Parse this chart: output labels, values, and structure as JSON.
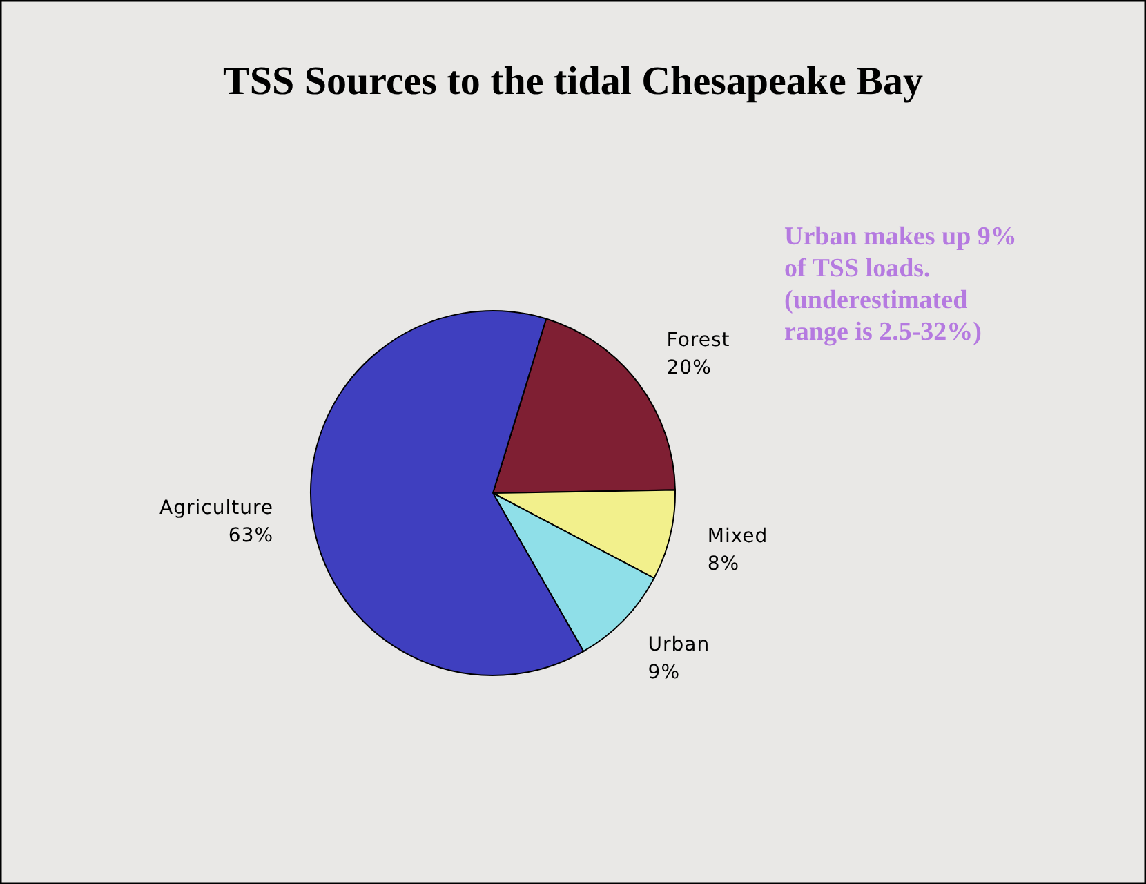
{
  "chart_data": {
    "type": "pie",
    "title": "TSS Sources to the tidal Chesapeake Bay",
    "categories": [
      "Forest",
      "Mixed",
      "Urban",
      "Agriculture"
    ],
    "values": [
      20,
      8,
      9,
      63
    ],
    "colors": [
      "#7f1f33",
      "#f2f08c",
      "#8fdfe8",
      "#3f3fbf"
    ],
    "value_labels": [
      "20%",
      "8%",
      "9%",
      "63%"
    ],
    "annotations": [
      "Urban makes up 9% of TSS loads. (underestimated range is 2.5-32%)"
    ]
  }
}
